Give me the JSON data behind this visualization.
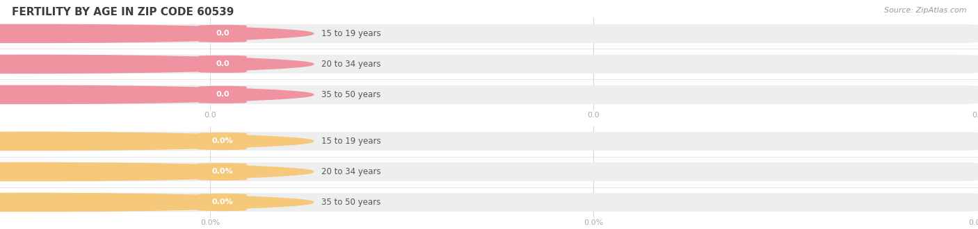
{
  "title": "FERTILITY BY AGE IN ZIP CODE 60539",
  "title_color": "#3d3d3d",
  "title_fontsize": 11,
  "source_text": "Source: ZipAtlas.com",
  "background_color": "#ffffff",
  "top_group": {
    "labels": [
      "15 to 19 years",
      "20 to 34 years",
      "35 to 50 years"
    ],
    "values": [
      0.0,
      0.0,
      0.0
    ],
    "bar_bg_color": "#eeeeee",
    "circle_color": "#f093a0",
    "pill_bg_color": "#ffffff",
    "pill_border_color": "#e8e8e8",
    "value_pill_color": "#f093a0",
    "pill_text_color": "#555555",
    "value_text_color": "#ffffff",
    "value_format": "0.0",
    "axis_label": "0.0"
  },
  "bottom_group": {
    "labels": [
      "15 to 19 years",
      "20 to 34 years",
      "35 to 50 years"
    ],
    "values": [
      0.0,
      0.0,
      0.0
    ],
    "bar_bg_color": "#eeeeee",
    "circle_color": "#f5c87a",
    "pill_bg_color": "#ffffff",
    "pill_border_color": "#e8e8e8",
    "value_pill_color": "#f5c87a",
    "pill_text_color": "#555555",
    "value_text_color": "#ffffff",
    "value_format": "0.0%",
    "axis_label": "0.0%"
  },
  "figsize": [
    14.06,
    3.3
  ],
  "dpi": 100
}
